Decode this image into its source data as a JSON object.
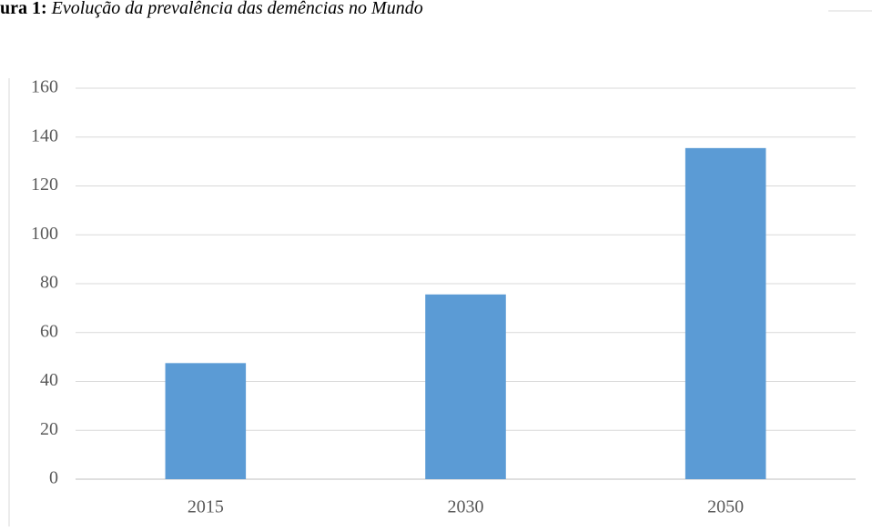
{
  "chart_data": {
    "type": "bar",
    "figure_label": "ura 1:",
    "title": "Evolução da prevalência das demências no Mundo",
    "categories": [
      "2015",
      "2030",
      "2050"
    ],
    "values": [
      47.5,
      75.6,
      135.5
    ],
    "color": "#5b9bd5",
    "ylim": [
      0,
      160
    ],
    "yticks": [
      0,
      20,
      40,
      60,
      80,
      100,
      120,
      140,
      160
    ],
    "grid": true
  }
}
